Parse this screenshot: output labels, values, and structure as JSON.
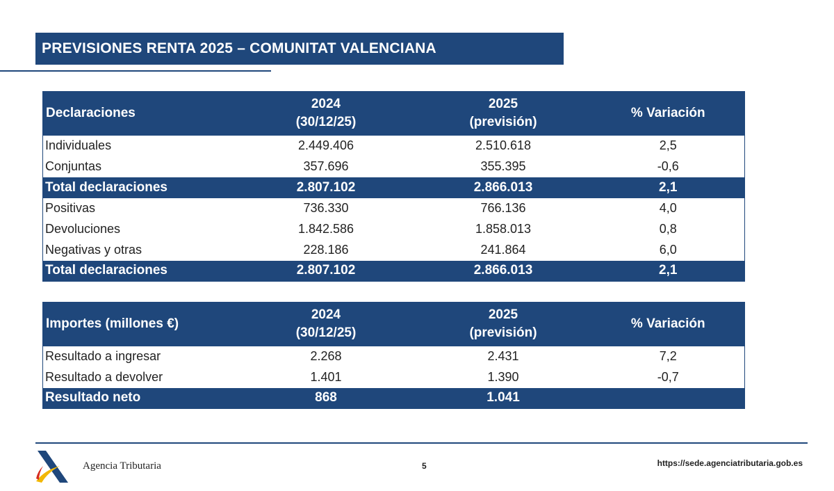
{
  "title": "PREVISIONES RENTA 2025 – COMUNITAT VALENCIANA",
  "declaraciones": {
    "headers": [
      "Declaraciones",
      "2024\n(30/12/25)",
      "2025\n(previsión)",
      "% Variación"
    ],
    "rows": [
      {
        "label": "Individuales",
        "v2024": "2.449.406",
        "v2025": "2.510.618",
        "var": "2,5",
        "total": false
      },
      {
        "label": "Conjuntas",
        "v2024": "357.696",
        "v2025": "355.395",
        "var": "-0,6",
        "total": false
      },
      {
        "label": "Total declaraciones",
        "v2024": "2.807.102",
        "v2025": "2.866.013",
        "var": "2,1",
        "total": true
      },
      {
        "label": "Positivas",
        "v2024": "736.330",
        "v2025": "766.136",
        "var": "4,0",
        "total": false
      },
      {
        "label": "Devoluciones",
        "v2024": "1.842.586",
        "v2025": "1.858.013",
        "var": "0,8",
        "total": false
      },
      {
        "label": "Negativas y otras",
        "v2024": "228.186",
        "v2025": "241.864",
        "var": "6,0",
        "total": false
      },
      {
        "label": "Total declaraciones",
        "v2024": "2.807.102",
        "v2025": "2.866.013",
        "var": "2,1",
        "total": true
      }
    ]
  },
  "importes": {
    "headers": [
      "Importes (millones €)",
      "2024\n(30/12/25)",
      "2025\n(previsión)",
      "% Variación"
    ],
    "rows": [
      {
        "label": "Resultado a ingresar",
        "v2024": "2.268",
        "v2025": "2.431",
        "var": "7,2",
        "total": false
      },
      {
        "label": "Resultado a devolver",
        "v2024": "1.401",
        "v2025": "1.390",
        "var": "-0,7",
        "total": false
      },
      {
        "label": "Resultado neto",
        "v2024": "868",
        "v2025": "1.041",
        "var": "",
        "total": true
      }
    ]
  },
  "footer": {
    "agency": "Agencia Tributaria",
    "page": "5",
    "url": "https://sede.agenciatributaria.gob.es"
  },
  "colors": {
    "brand": "#1f477b",
    "logo_yellow": "#f2b705",
    "logo_red": "#d62b1f"
  }
}
